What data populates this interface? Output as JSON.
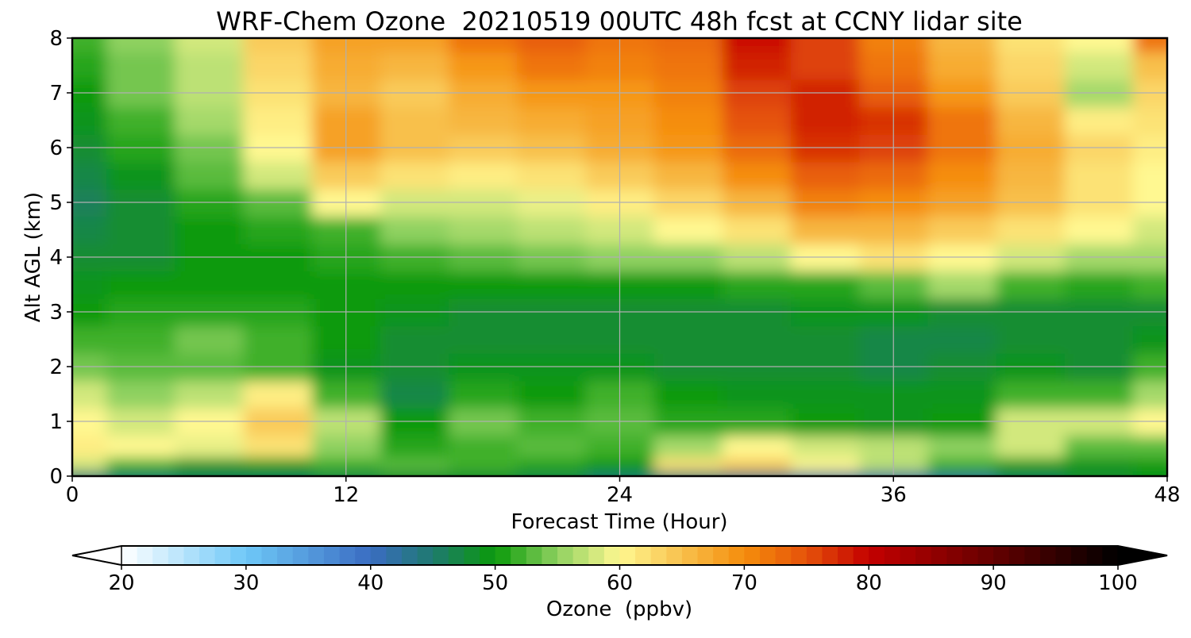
{
  "chart_data": {
    "type": "heatmap",
    "title": "WRF-Chem Ozone  20210519 00UTC 48h fcst at CCNY lidar site",
    "xlabel": "Forecast Time (Hour)",
    "ylabel": "Alt AGL (km)",
    "xlim": [
      0,
      48
    ],
    "ylim": [
      0,
      8
    ],
    "xticks": [
      0,
      12,
      24,
      36,
      48
    ],
    "yticks": [
      0,
      1,
      2,
      3,
      4,
      5,
      6,
      7,
      8
    ],
    "grid": true,
    "x": [
      0,
      3,
      6,
      9,
      12,
      15,
      18,
      21,
      24,
      27,
      30,
      33,
      36,
      39,
      42,
      45,
      48
    ],
    "y": [
      0,
      0.2,
      0.5,
      1,
      1.5,
      2,
      2.5,
      3,
      3.5,
      4,
      4.5,
      5,
      5.5,
      6,
      6.5,
      7,
      7.5,
      8
    ],
    "z": [
      [
        44,
        45,
        46,
        46,
        47,
        48,
        48,
        47,
        45,
        44,
        43,
        42,
        42,
        43,
        46,
        48,
        49
      ],
      [
        58,
        52,
        49,
        50,
        52,
        53,
        52,
        51,
        50,
        62,
        64,
        60,
        57,
        52,
        50,
        49,
        50
      ],
      [
        61,
        60,
        59,
        62,
        55,
        51,
        52,
        53,
        52,
        56,
        60,
        58,
        57,
        55,
        58,
        53,
        53
      ],
      [
        60,
        58,
        60,
        64,
        57,
        50,
        54,
        52,
        53,
        51,
        51,
        50,
        49,
        50,
        58,
        58,
        60
      ],
      [
        58,
        55,
        57,
        61,
        52,
        47,
        51,
        50,
        52,
        50,
        49,
        49,
        49,
        49,
        52,
        52,
        56
      ],
      [
        54,
        53,
        53,
        52,
        49,
        48,
        49,
        49,
        49,
        48,
        48,
        48,
        47,
        48,
        49,
        48,
        52
      ],
      [
        52,
        52,
        54,
        52,
        50,
        48,
        48,
        48,
        48,
        48,
        48,
        48,
        47,
        47,
        48,
        48,
        49
      ],
      [
        50,
        51,
        51,
        51,
        50,
        49,
        48,
        48,
        48,
        48,
        48,
        49,
        49,
        48,
        48,
        48,
        48
      ],
      [
        49,
        50,
        50,
        50,
        50,
        50,
        50,
        50,
        50,
        50,
        51,
        51,
        53,
        56,
        52,
        51,
        52
      ],
      [
        48,
        48,
        50,
        50,
        51,
        52,
        53,
        54,
        55,
        55,
        57,
        60,
        62,
        60,
        58,
        56,
        56
      ],
      [
        47,
        48,
        50,
        51,
        52,
        55,
        56,
        57,
        58,
        60,
        62,
        66,
        66,
        64,
        62,
        60,
        58
      ],
      [
        46,
        48,
        51,
        53,
        60,
        58,
        58,
        59,
        61,
        63,
        66,
        71,
        70,
        68,
        65,
        62,
        60
      ],
      [
        47,
        49,
        53,
        58,
        64,
        62,
        61,
        62,
        64,
        66,
        70,
        74,
        73,
        70,
        66,
        62,
        60
      ],
      [
        48,
        51,
        54,
        60,
        68,
        65,
        64,
        65,
        67,
        69,
        73,
        77,
        76,
        72,
        67,
        63,
        61
      ],
      [
        49,
        52,
        56,
        61,
        68,
        65,
        66,
        67,
        68,
        70,
        75,
        78,
        77,
        72,
        66,
        61,
        62
      ],
      [
        50,
        54,
        57,
        62,
        66,
        64,
        67,
        69,
        69,
        71,
        76,
        78,
        74,
        69,
        64,
        56,
        63
      ],
      [
        51,
        54,
        57,
        63,
        67,
        66,
        69,
        72,
        71,
        72,
        78,
        76,
        72,
        67,
        63,
        58,
        65
      ],
      [
        52,
        55,
        58,
        64,
        68,
        68,
        72,
        74,
        72,
        73,
        79,
        76,
        71,
        66,
        62,
        60,
        72
      ]
    ],
    "colorbar": {
      "label": "Ozone  (ppbv)",
      "min": 20,
      "max": 100,
      "ticks": [
        20,
        30,
        40,
        50,
        60,
        70,
        80,
        90,
        100
      ],
      "extend": "both",
      "stops": [
        {
          "v": 20,
          "c": "#ffffff"
        },
        {
          "v": 30,
          "c": "#6ec8f7"
        },
        {
          "v": 40,
          "c": "#3a6cc2"
        },
        {
          "v": 45,
          "c": "#1f7a6e"
        },
        {
          "v": 50,
          "c": "#0a9a0a"
        },
        {
          "v": 55,
          "c": "#8fd160"
        },
        {
          "v": 60,
          "c": "#fff891"
        },
        {
          "v": 65,
          "c": "#f8c04c"
        },
        {
          "v": 70,
          "c": "#f58d0c"
        },
        {
          "v": 75,
          "c": "#e5520a"
        },
        {
          "v": 80,
          "c": "#c40000"
        },
        {
          "v": 90,
          "c": "#640000"
        },
        {
          "v": 100,
          "c": "#000000"
        }
      ]
    }
  }
}
